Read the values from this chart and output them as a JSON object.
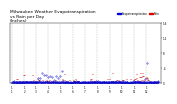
{
  "title": "Milwaukee Weather Evapotranspiration\nvs Rain per Day\n(Inches)",
  "title_fontsize": 3.2,
  "legend_labels": [
    "Evapotranspiration",
    "Rain"
  ],
  "legend_colors": [
    "#0000dd",
    "#dd0000"
  ],
  "bg_color": "#ffffff",
  "dot_color_et": "#0000cc",
  "dot_color_rain": "#cc0000",
  "axis_color": "#000000",
  "grid_color": "#999999",
  "ylim": [
    0,
    1.6
  ],
  "yticks": [
    0,
    0.4,
    0.8,
    1.2,
    1.6
  ],
  "ytick_labels": [
    "0",
    ".4",
    ".8",
    "1.2",
    "1.6"
  ],
  "month_starts": [
    0,
    31,
    59,
    90,
    120,
    151,
    181,
    212,
    243,
    273,
    304,
    334
  ],
  "xtick_labels": [
    "1\n1",
    "1\n2",
    "1\n3",
    "1\n4",
    "1\n5",
    "1\n6",
    "1\n7",
    "1\n8",
    "1\n9",
    "1\n10",
    "1\n11",
    "1\n12"
  ]
}
